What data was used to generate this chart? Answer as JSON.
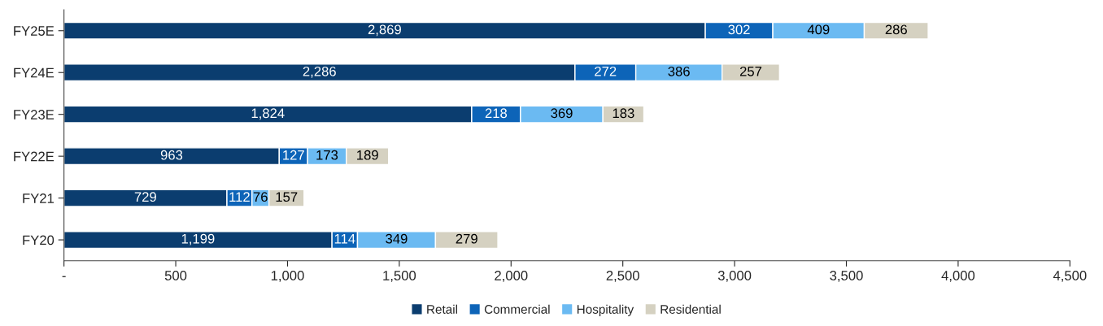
{
  "chart_data": {
    "type": "bar",
    "orientation": "horizontal",
    "stacked": true,
    "categories": [
      "FY25E",
      "FY24E",
      "FY23E",
      "FY22E",
      "FY21",
      "FY20"
    ],
    "series": [
      {
        "name": "Retail",
        "color": "#0b3d6f",
        "values": [
          2869,
          2286,
          1824,
          963,
          729,
          1199
        ],
        "value_labels": [
          "2,869",
          "2,286",
          "1,824",
          "963",
          "729",
          "1,199"
        ]
      },
      {
        "name": "Commercial",
        "color": "#0d64b8",
        "values": [
          302,
          272,
          218,
          127,
          112,
          114
        ],
        "value_labels": [
          "302",
          "272",
          "218",
          "127",
          "112",
          "114"
        ]
      },
      {
        "name": "Hospitality",
        "color": "#6bbaf2",
        "values": [
          409,
          386,
          369,
          173,
          76,
          349
        ],
        "value_labels": [
          "409",
          "386",
          "369",
          "173",
          "76",
          "349"
        ]
      },
      {
        "name": "Residential",
        "color": "#d5d1c1",
        "values": [
          286,
          257,
          183,
          189,
          157,
          279
        ],
        "value_labels": [
          "286",
          "257",
          "183",
          "189",
          "157",
          "279"
        ]
      }
    ],
    "xlim": [
      0,
      4500
    ],
    "xticks": [
      {
        "value": 0,
        "label": "-"
      },
      {
        "value": 500,
        "label": "500"
      },
      {
        "value": 1000,
        "label": "1,000"
      },
      {
        "value": 1500,
        "label": "1,500"
      },
      {
        "value": 2000,
        "label": "2,000"
      },
      {
        "value": 2500,
        "label": "2,500"
      },
      {
        "value": 3000,
        "label": "3,000"
      },
      {
        "value": 3500,
        "label": "3,500"
      },
      {
        "value": 4000,
        "label": "4,000"
      },
      {
        "value": 4500,
        "label": "4,500"
      }
    ],
    "grid": false,
    "legend": "bottom"
  }
}
